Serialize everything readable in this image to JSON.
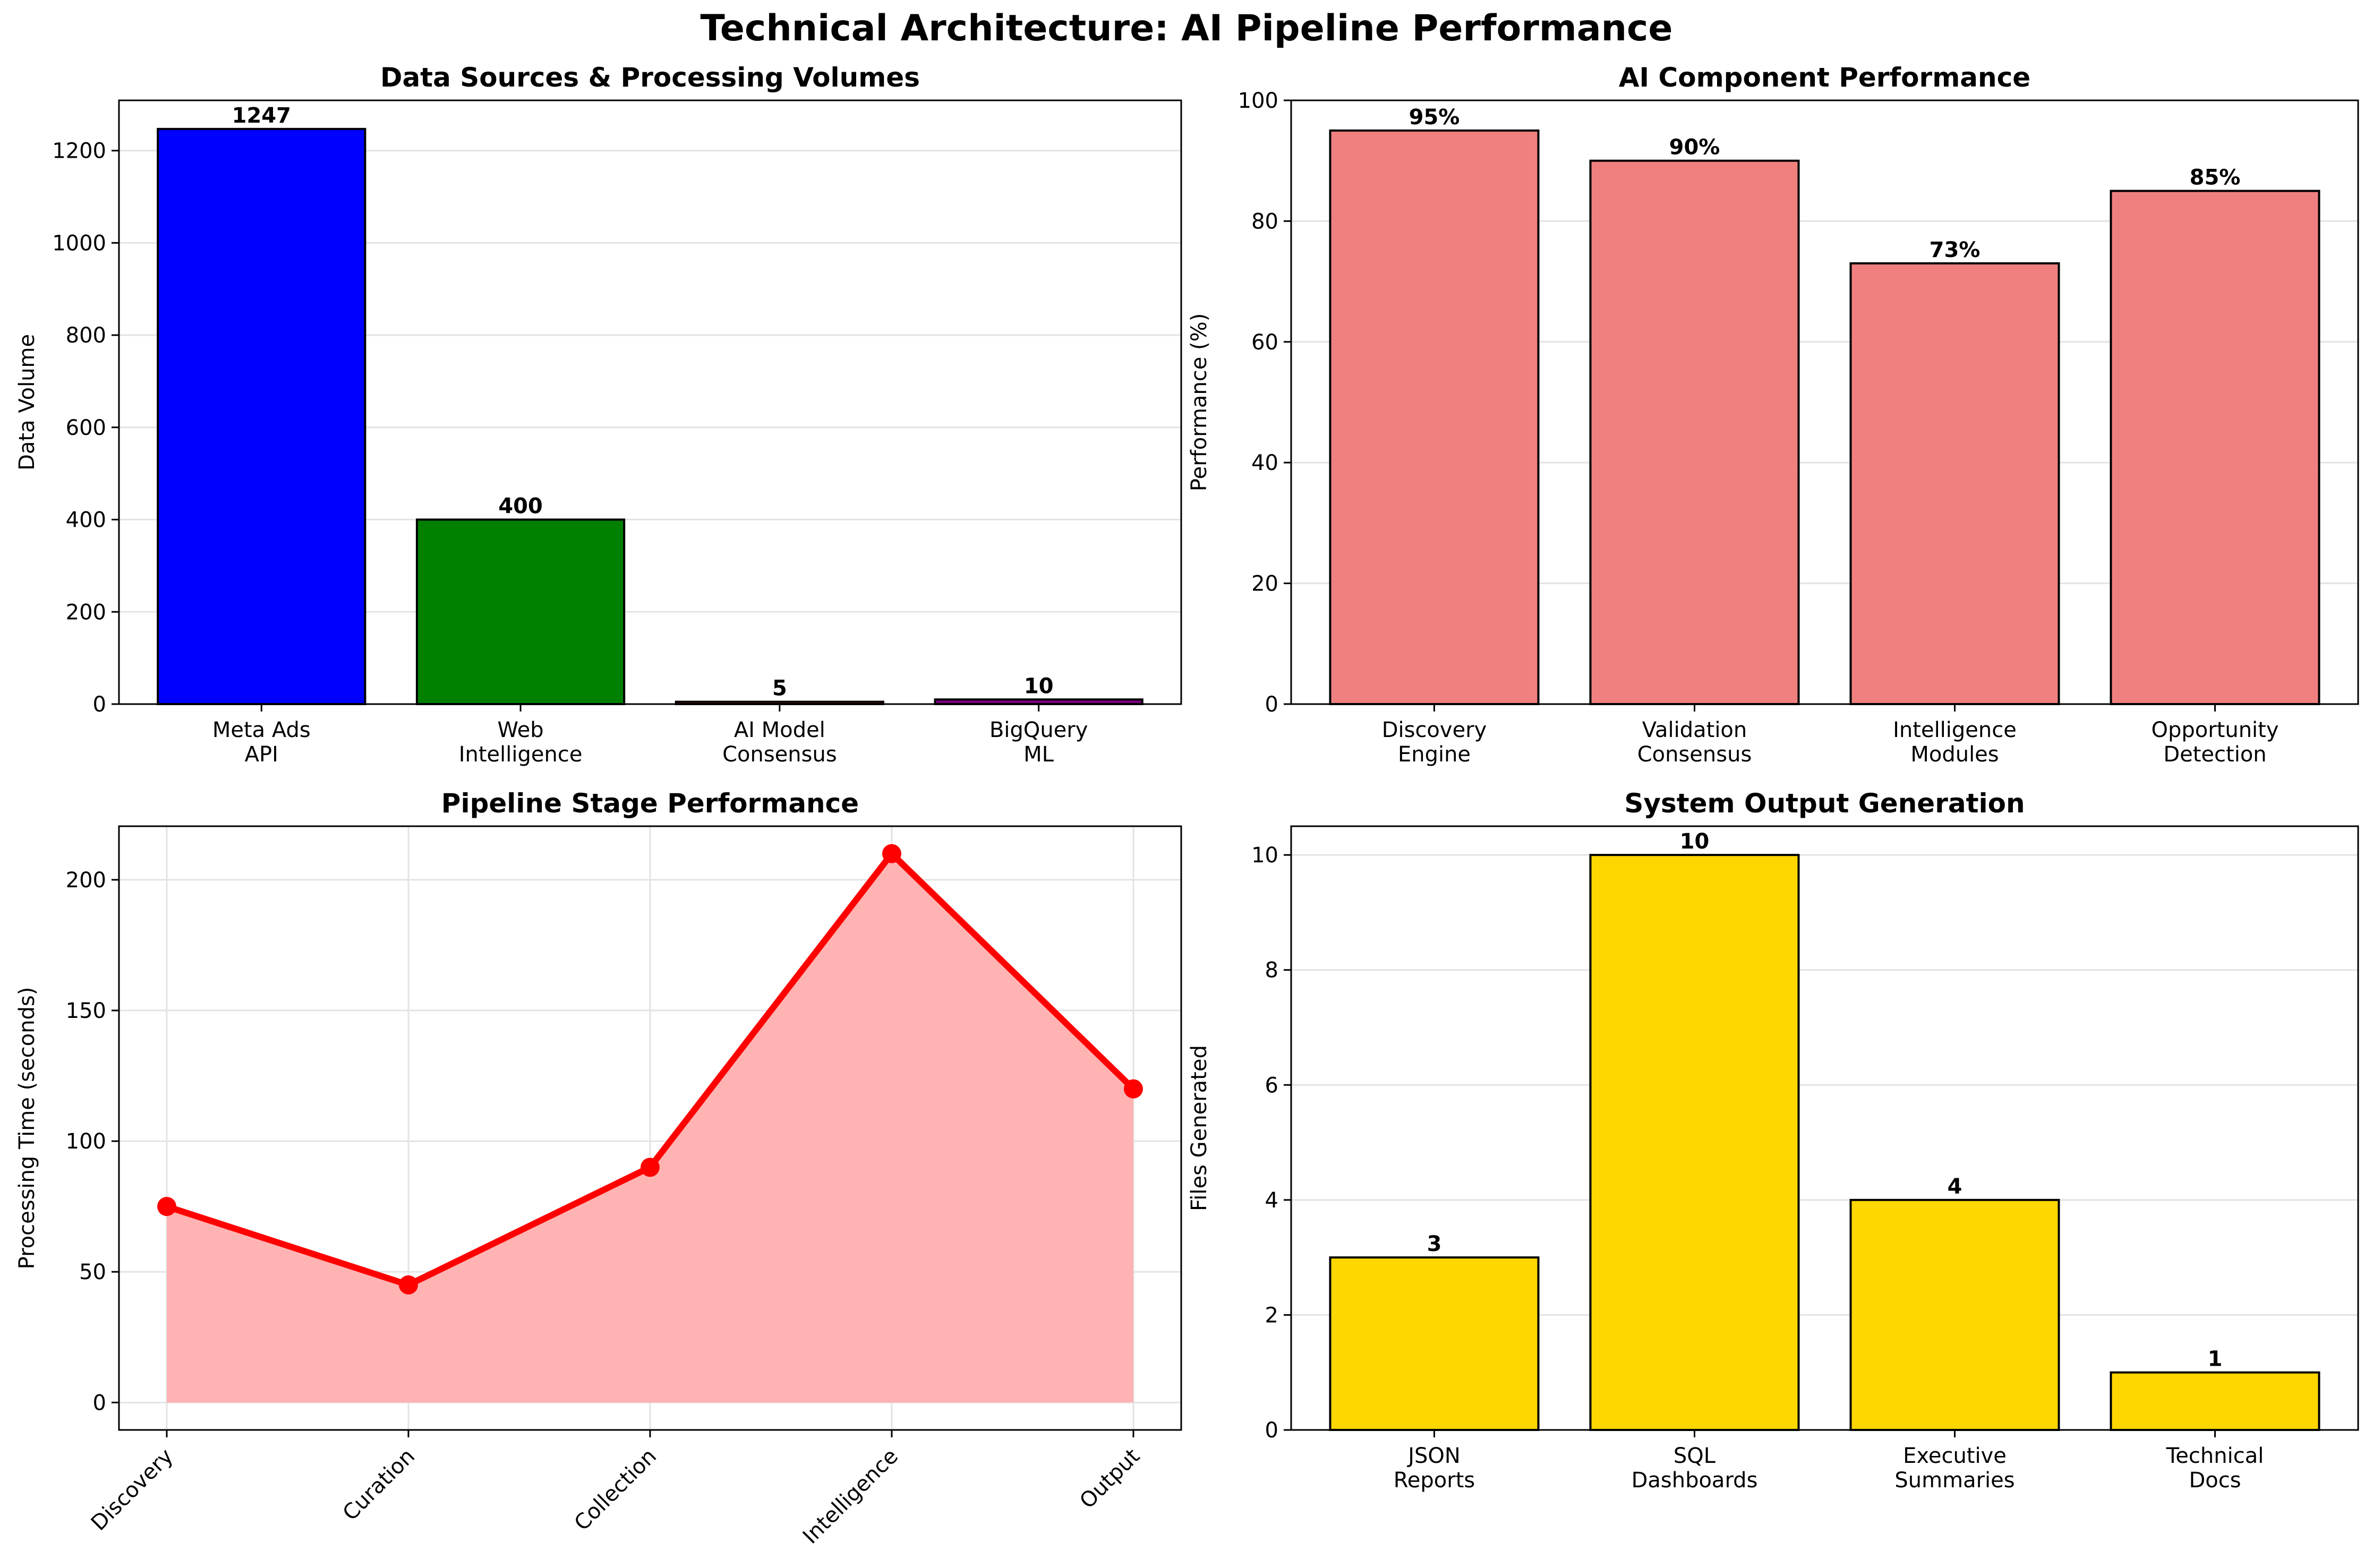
{
  "suptitle": "Technical Architecture: AI Pipeline Performance",
  "chart_data": [
    {
      "type": "bar",
      "title": "Data Sources & Processing Volumes",
      "xlabel": "",
      "ylabel": "Data Volume",
      "categories": [
        "Meta Ads\nAPI",
        "Web\nIntelligence",
        "AI Model\nConsensus",
        "BigQuery\nML"
      ],
      "values": [
        1247,
        400,
        5,
        10
      ],
      "data_labels": [
        "1247",
        "400",
        "5",
        "10"
      ],
      "colors": [
        "#0000ff",
        "#008000",
        "#ff0000",
        "#800080"
      ],
      "ylim": [
        0,
        1309
      ],
      "yticks": [
        0,
        200,
        400,
        600,
        800,
        1000,
        1200
      ],
      "grid": "y"
    },
    {
      "type": "bar",
      "title": "AI Component Performance",
      "xlabel": "",
      "ylabel": "Performance (%)",
      "categories": [
        "Discovery\nEngine",
        "Validation\nConsensus",
        "Intelligence\nModules",
        "Opportunity\nDetection"
      ],
      "values": [
        95,
        90,
        73,
        85
      ],
      "data_labels": [
        "95%",
        "90%",
        "73%",
        "85%"
      ],
      "colors": [
        "#f08080",
        "#f08080",
        "#f08080",
        "#f08080"
      ],
      "ylim": [
        0,
        100
      ],
      "yticks": [
        0,
        20,
        40,
        60,
        80,
        100
      ],
      "grid": "y"
    },
    {
      "type": "area",
      "title": "Pipeline Stage Performance",
      "xlabel": "",
      "ylabel": "Processing Time (seconds)",
      "categories": [
        "Discovery",
        "Curation",
        "Collection",
        "Intelligence",
        "Output"
      ],
      "values": [
        75,
        45,
        90,
        210,
        120
      ],
      "line_color": "#ff0000",
      "fill_color": "#ffb3b3",
      "ylim": [
        -10.5,
        220.5
      ],
      "yticks": [
        0,
        50,
        100,
        150,
        200
      ],
      "grid": "both"
    },
    {
      "type": "bar",
      "title": "System Output Generation",
      "xlabel": "",
      "ylabel": "Files Generated",
      "categories": [
        "JSON\nReports",
        "SQL\nDashboards",
        "Executive\nSummaries",
        "Technical\nDocs"
      ],
      "values": [
        3,
        10,
        4,
        1
      ],
      "data_labels": [
        "3",
        "10",
        "4",
        "1"
      ],
      "colors": [
        "#ffd700",
        "#ffd700",
        "#ffd700",
        "#ffd700"
      ],
      "ylim": [
        0,
        10.5
      ],
      "yticks": [
        0,
        2,
        4,
        6,
        8,
        10
      ],
      "grid": "y"
    }
  ]
}
